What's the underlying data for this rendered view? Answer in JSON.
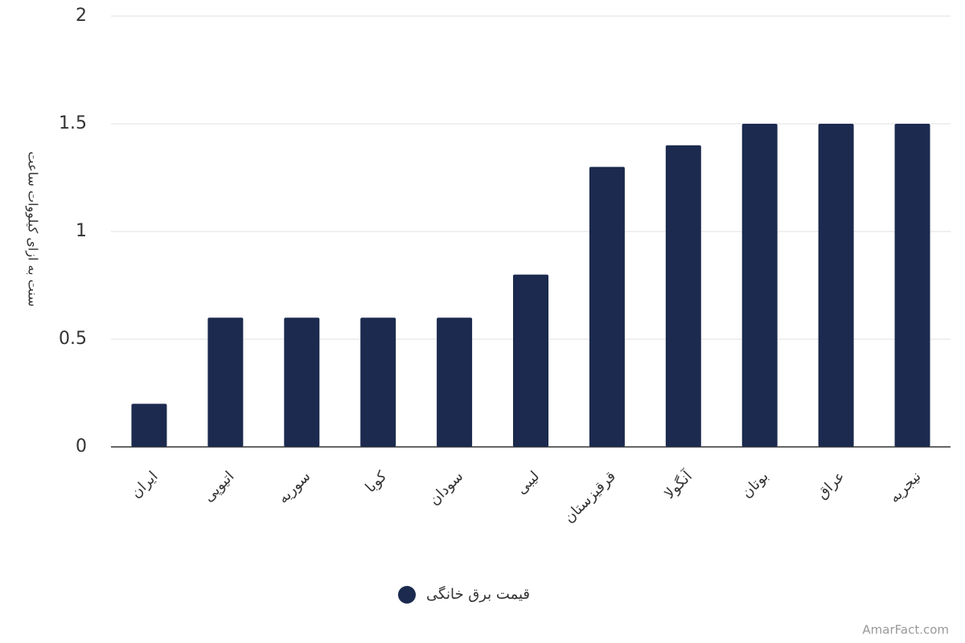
{
  "chart_data": {
    "type": "bar",
    "y_label": "سنت به ازای کیلووات ساعت",
    "categories": [
      "ایران",
      "اتیوپی",
      "سوریه",
      "کوبا",
      "سودان",
      "لیبی",
      "قرقیزستان",
      "آنگولا",
      "بوتان",
      "عراق",
      "نیجریه"
    ],
    "series": [
      {
        "name": "قیمت برق خانگی",
        "color": "#1b2a4e",
        "values": [
          0.2,
          0.6,
          0.6,
          0.6,
          0.6,
          0.8,
          1.3,
          1.4,
          1.5,
          1.5,
          1.5
        ]
      }
    ],
    "ylim": [
      0,
      2
    ],
    "yticks": [
      0,
      0.5,
      1,
      1.5,
      2
    ],
    "grid": true,
    "watermark": "AmarFact.com"
  }
}
